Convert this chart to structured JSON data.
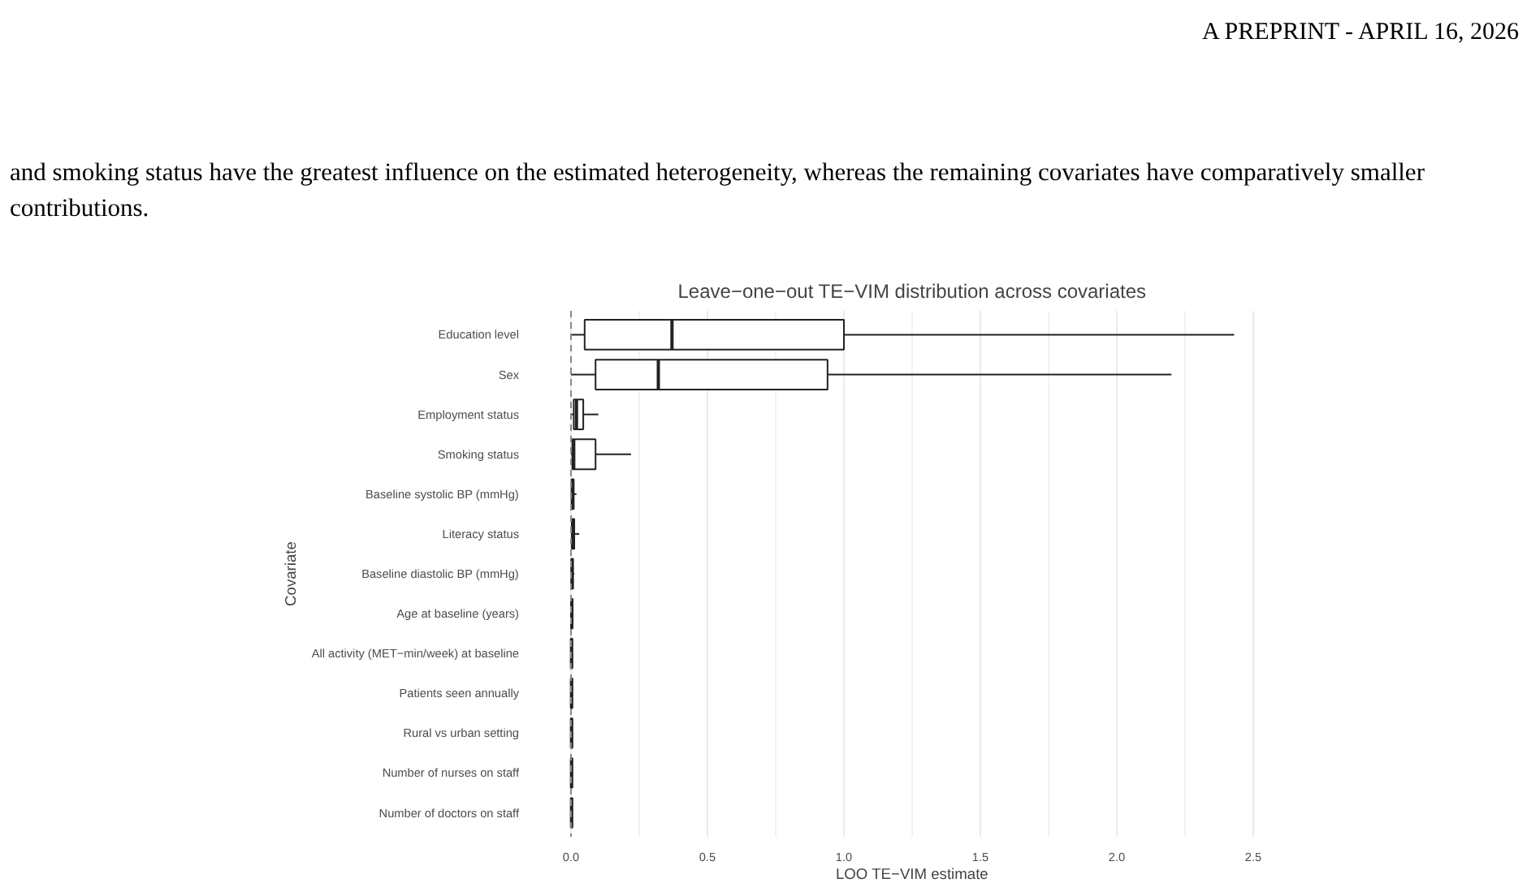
{
  "chart_data": {
    "type": "box",
    "orientation": "horizontal",
    "title": "Leave−one−out TE−VIM distribution across covariates",
    "xlabel": "LOO TE−VIM estimate",
    "ylabel": "Covariate",
    "categories": [
      "Education level",
      "Sex",
      "Employment status",
      "Smoking status",
      "Baseline systolic BP (mmHg)",
      "Literacy status",
      "Baseline diastolic BP (mmHg)",
      "Age at baseline (years)",
      "All activity (MET−min/week) at baseline",
      "Patients seen annually",
      "Rural vs urban setting",
      "Number of nurses on staff",
      "Number of doctors on staff"
    ],
    "boxes": [
      {
        "low": 0.0,
        "q1": 0.05,
        "median": 0.37,
        "q3": 1.0,
        "high": 2.43
      },
      {
        "low": 0.0,
        "q1": 0.09,
        "median": 0.32,
        "q3": 0.94,
        "high": 2.2
      },
      {
        "low": 0.0,
        "q1": 0.01,
        "median": 0.02,
        "q3": 0.045,
        "high": 0.1
      },
      {
        "low": 0.0,
        "q1": 0.005,
        "median": 0.01,
        "q3": 0.09,
        "high": 0.22
      },
      {
        "low": 0.0,
        "q1": 0.003,
        "median": 0.005,
        "q3": 0.01,
        "high": 0.02
      },
      {
        "low": 0.0,
        "q1": 0.004,
        "median": 0.006,
        "q3": 0.012,
        "high": 0.03
      },
      {
        "low": 0.0,
        "q1": 0.002,
        "median": 0.004,
        "q3": 0.007,
        "high": 0.012
      },
      {
        "low": 0.0,
        "q1": 0.002,
        "median": 0.003,
        "q3": 0.005,
        "high": 0.008
      },
      {
        "low": 0.0,
        "q1": 0.001,
        "median": 0.002,
        "q3": 0.004,
        "high": 0.006
      },
      {
        "low": 0.0,
        "q1": 0.001,
        "median": 0.002,
        "q3": 0.004,
        "high": 0.006
      },
      {
        "low": 0.0,
        "q1": 0.001,
        "median": 0.002,
        "q3": 0.004,
        "high": 0.006
      },
      {
        "low": 0.0,
        "q1": 0.001,
        "median": 0.002,
        "q3": 0.004,
        "high": 0.006
      },
      {
        "low": 0.0,
        "q1": 0.001,
        "median": 0.002,
        "q3": 0.004,
        "high": 0.006
      }
    ],
    "color": "#222222",
    "xlim": [
      0,
      2.5
    ],
    "xticks": [
      {
        "value": 0,
        "label": "0.0"
      },
      0.5,
      {
        "value": 1,
        "label": "1.0"
      },
      1.5,
      {
        "value": 2,
        "label": "2.0"
      },
      2.5
    ],
    "grid": "x",
    "ref_lines": [
      {
        "axis": "x",
        "value": 0,
        "label": null,
        "color": "#888888",
        "line_style": "dashed"
      }
    ],
    "annotations": [
      "A PREPRINT - APRIL 16, 2026",
      "and smoking status have the greatest influence on the estimated heterogeneity, whereas the remaining covariates have comparatively smaller contributions."
    ]
  }
}
